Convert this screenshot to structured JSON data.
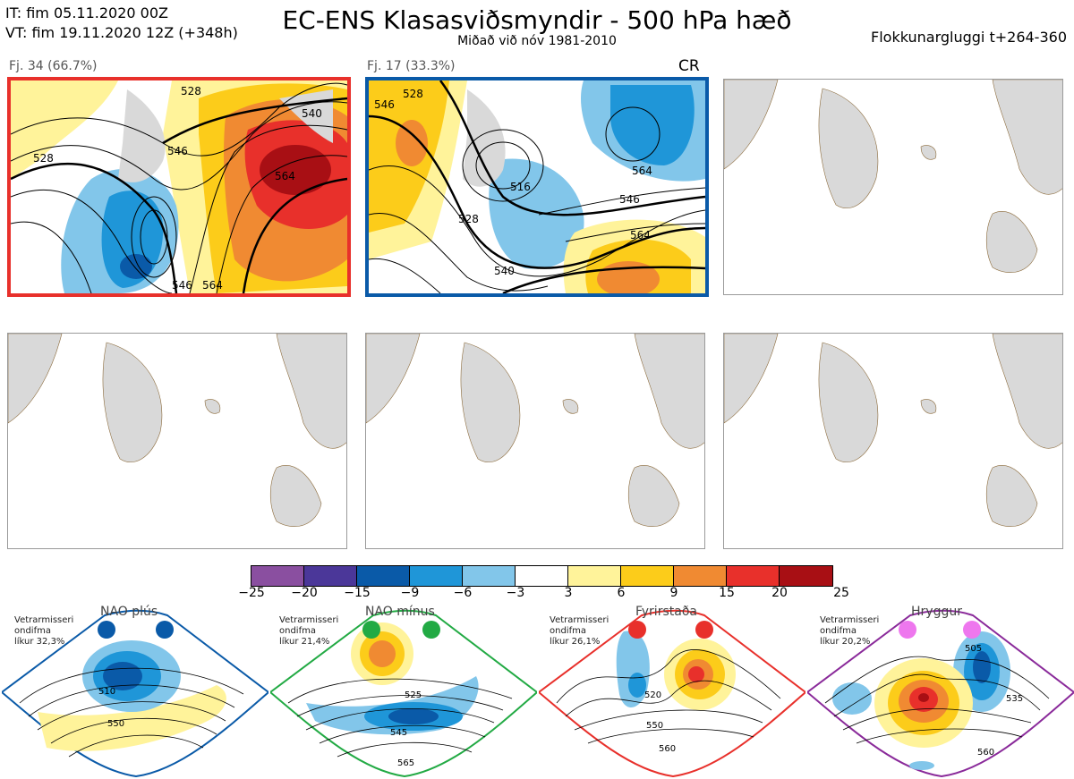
{
  "header": {
    "initial_time": "IT: fim 05.11.2020 00Z",
    "valid_time": "VT: fim 19.11.2020 12Z  (+348h)",
    "title": "EC-ENS Klasasviðsmyndir - 500 hPa hæð",
    "subtitle": "Miðað við nóv 1981-2010",
    "window": "Flokkunargluggi t+264-360"
  },
  "panels": [
    {
      "label": "Fj. 34 (66.7%)",
      "border_color": "#e8302b",
      "contours": [
        "528",
        "546",
        "564",
        "540",
        "528",
        "546",
        "564"
      ]
    },
    {
      "label": "Fj. 17 (33.3%)",
      "border_color": "#0a5aa8",
      "tag": "CR",
      "contours": [
        "546",
        "528",
        "516",
        "528",
        "546",
        "564",
        "540",
        "564"
      ]
    },
    {
      "label": ""
    },
    {
      "label": ""
    },
    {
      "label": ""
    },
    {
      "label": ""
    }
  ],
  "colorbar": {
    "colors": [
      "#8a4fa0",
      "#4b3799",
      "#0a5aa8",
      "#1f96d8",
      "#82c6ea",
      "#ffffff",
      "#fff39a",
      "#fccc1a",
      "#f08a32",
      "#e8302b",
      "#a80f14"
    ],
    "ticks": [
      "−25",
      "−20",
      "−15",
      "−9",
      "−6",
      "−3",
      "3",
      "6",
      "9",
      "15",
      "20",
      "25"
    ]
  },
  "regimes": [
    {
      "name": "NAO plús",
      "desc_line1": "Vetrarmisseri",
      "desc_line2": "ondifma",
      "desc_line3": "líkur 32,3%",
      "color": "#0a5aa8",
      "contours": [
        "510",
        "550"
      ]
    },
    {
      "name": "NAO mínus",
      "desc_line1": "Vetrarmisseri",
      "desc_line2": "ondifma",
      "desc_line3": "líkur 21,4%",
      "color": "#22aa44",
      "contours": [
        "525",
        "545",
        "565"
      ]
    },
    {
      "name": "Fyrirstaða",
      "desc_line1": "Vetrarmisseri",
      "desc_line2": "ondifma",
      "desc_line3": "líkur 26,1%",
      "color": "#e8302b",
      "contours": [
        "520",
        "550",
        "560"
      ]
    },
    {
      "name": "Hryggur",
      "desc_line1": "Vetrarmisseri",
      "desc_line2": "ondifma",
      "desc_line3": "líkur 20,2%",
      "color": "#8a2a9a",
      "dot_color": "#ee77ee",
      "contours": [
        "505",
        "535",
        "560"
      ]
    }
  ]
}
